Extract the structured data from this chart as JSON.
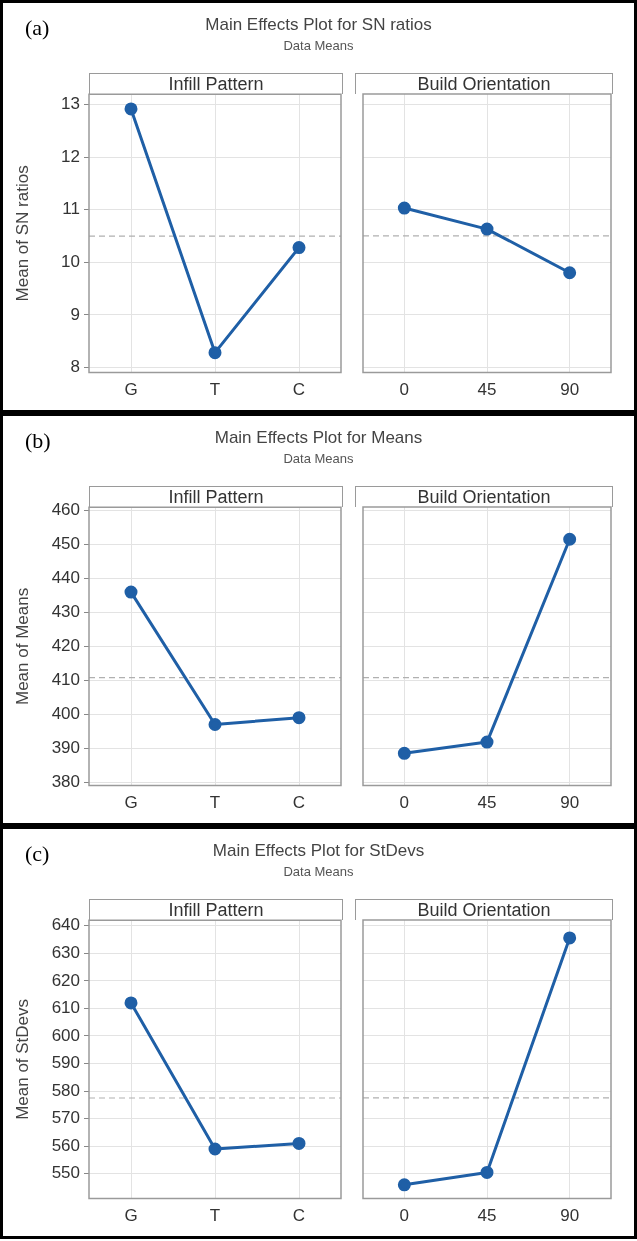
{
  "chart_data": [
    {
      "type": "line",
      "title": "Main Effects Plot for SN ratios",
      "subtitle": "Data Means",
      "xlabel": "Infill Pattern",
      "ylabel": "Mean of SN ratios",
      "annotations": [
        "(a)"
      ],
      "categories": [
        "G",
        "T",
        "C"
      ],
      "values": [
        12.92,
        8.28,
        10.28
      ],
      "color": "#1f5fa6",
      "ylim": [
        7.9,
        13.2
      ],
      "yticks": [
        8,
        9,
        10,
        11,
        12,
        13
      ],
      "grid": true,
      "marker": "circle",
      "line_style": "solid",
      "legend": false,
      "ref_lines": [
        {
          "axis": "y",
          "value": 10.5,
          "color": "#b0b0b0",
          "line_style": "dashed"
        }
      ]
    },
    {
      "type": "line",
      "xlabel": "Build Orientation",
      "categories": [
        "0",
        "45",
        "90"
      ],
      "values": [
        11.03,
        10.63,
        9.8
      ],
      "color": "#1f5fa6",
      "ylim": [
        7.9,
        13.2
      ],
      "yticks": [
        8,
        9,
        10,
        11,
        12,
        13
      ],
      "tick_labels": "x",
      "grid": true,
      "marker": "circle",
      "line_style": "solid",
      "legend": false,
      "ref_lines": [
        {
          "axis": "y",
          "value": 10.5,
          "color": "#b0b0b0",
          "line_style": "dashed"
        }
      ]
    },
    {
      "type": "line",
      "title": "Main Effects Plot for Means",
      "subtitle": "Data Means",
      "xlabel": "Infill Pattern",
      "ylabel": "Mean of Means",
      "annotations": [
        "(b)"
      ],
      "categories": [
        "G",
        "T",
        "C"
      ],
      "values": [
        436,
        397,
        399
      ],
      "color": "#1f5fa6",
      "ylim": [
        379,
        461
      ],
      "yticks": [
        380,
        390,
        400,
        410,
        420,
        430,
        440,
        450,
        460
      ],
      "grid": true,
      "marker": "circle",
      "line_style": "solid",
      "legend": false,
      "ref_lines": [
        {
          "axis": "y",
          "value": 410.8,
          "color": "#b0b0b0",
          "line_style": "dashed"
        }
      ]
    },
    {
      "type": "line",
      "xlabel": "Build Orientation",
      "categories": [
        "0",
        "45",
        "90"
      ],
      "values": [
        388.5,
        391.8,
        451.5
      ],
      "color": "#1f5fa6",
      "ylim": [
        379,
        461
      ],
      "yticks": [
        380,
        390,
        400,
        410,
        420,
        430,
        440,
        450,
        460
      ],
      "tick_labels": "x",
      "grid": true,
      "marker": "circle",
      "line_style": "solid",
      "legend": false,
      "ref_lines": [
        {
          "axis": "y",
          "value": 410.8,
          "color": "#b0b0b0",
          "line_style": "dashed"
        }
      ]
    },
    {
      "type": "line",
      "title": "Main Effects Plot for StDevs",
      "subtitle": "Data Means",
      "xlabel": "Infill Pattern",
      "ylabel": "Mean of StDevs",
      "annotations": [
        "(c)"
      ],
      "categories": [
        "G",
        "T",
        "C"
      ],
      "values": [
        612,
        559,
        561
      ],
      "color": "#1f5fa6",
      "ylim": [
        541,
        642
      ],
      "yticks": [
        550,
        560,
        570,
        580,
        590,
        600,
        610,
        620,
        630,
        640
      ],
      "grid": true,
      "marker": "circle",
      "line_style": "solid",
      "legend": false,
      "ref_lines": [
        {
          "axis": "y",
          "value": 577.5,
          "color": "#b0b0b0",
          "line_style": "dashed"
        }
      ]
    },
    {
      "type": "line",
      "xlabel": "Build Orientation",
      "categories": [
        "0",
        "45",
        "90"
      ],
      "values": [
        546,
        550.5,
        635.5
      ],
      "color": "#1f5fa6",
      "ylim": [
        541,
        642
      ],
      "yticks": [
        550,
        560,
        570,
        580,
        590,
        600,
        610,
        620,
        630,
        640
      ],
      "tick_labels": "x",
      "grid": true,
      "marker": "circle",
      "line_style": "solid",
      "legend": false,
      "ref_lines": [
        {
          "axis": "y",
          "value": 577.5,
          "color": "#b0b0b0",
          "line_style": "dashed"
        }
      ]
    }
  ]
}
